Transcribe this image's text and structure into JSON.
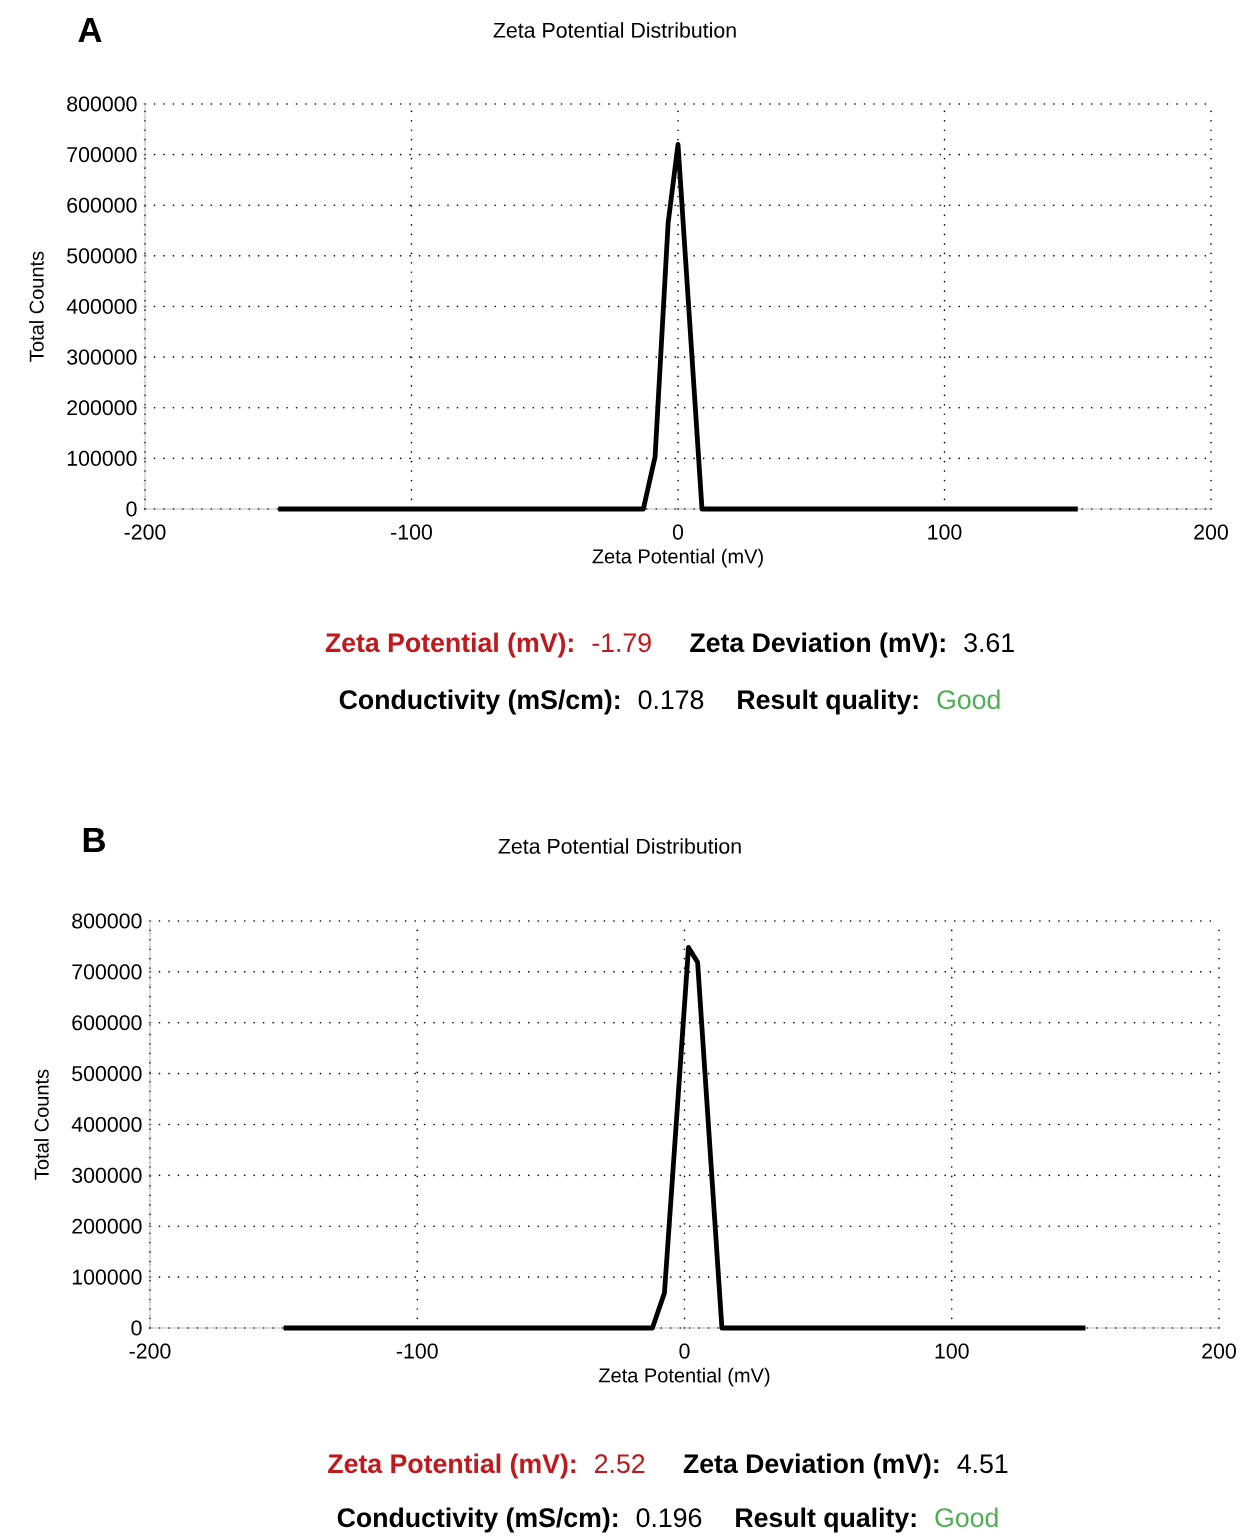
{
  "chart_data": [
    {
      "type": "line",
      "title": "Zeta Potential Distribution",
      "xlabel": "Zeta Potential (mV)",
      "ylabel": "Total Counts",
      "x": [
        -150,
        -13,
        -8.6,
        -3.7,
        0,
        9,
        150
      ],
      "series": [
        {
          "color": "#000000",
          "values": [
            0,
            0,
            103000,
            565000,
            720000,
            0,
            0
          ]
        }
      ],
      "xlim": [
        -200,
        200
      ],
      "xticks": [
        -200,
        -100,
        0,
        100,
        200
      ],
      "ylim": [
        0,
        800000
      ],
      "yticks": [
        0,
        100000,
        200000,
        300000,
        400000,
        500000,
        600000,
        700000,
        800000
      ],
      "grid": true,
      "marker": "none",
      "line_style": "solid",
      "annotations": [
        "A",
        "Zeta Potential (mV):",
        "-1.79",
        "Zeta Deviation (mV):",
        "3.61",
        "Conductivity (mS/cm):",
        "0.178",
        "Result quality:",
        "Good"
      ]
    },
    {
      "type": "line",
      "title": "Zeta Potential Distribution",
      "xlabel": "Zeta Potential (mV)",
      "ylabel": "Total Counts",
      "x": [
        -150,
        -12,
        -7.5,
        1.5,
        4.9,
        14,
        150
      ],
      "series": [
        {
          "color": "#000000",
          "values": [
            0,
            0,
            69000,
            748000,
            719000,
            0,
            0
          ]
        }
      ],
      "xlim": [
        -200,
        200
      ],
      "xticks": [
        -200,
        -100,
        0,
        100,
        200
      ],
      "ylim": [
        0,
        800000
      ],
      "yticks": [
        0,
        100000,
        200000,
        300000,
        400000,
        500000,
        600000,
        700000,
        800000
      ],
      "grid": true,
      "marker": "none",
      "line_style": "solid",
      "annotations": [
        "B",
        "Zeta Potential (mV):",
        "2.52",
        "Zeta Deviation (mV):",
        "4.51",
        "Conductivity (mS/cm):",
        "0.196",
        "Result quality:",
        "Good"
      ]
    }
  ]
}
